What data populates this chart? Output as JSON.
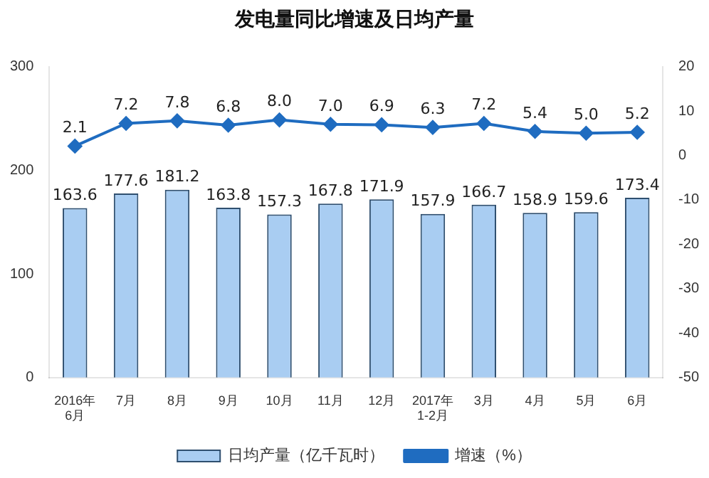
{
  "chart_data": {
    "type": "bar",
    "title": "发电量同比增速及日均产量",
    "categories": [
      "2016年\n6月",
      "7月",
      "8月",
      "9月",
      "10月",
      "11月",
      "12月",
      "2017年\n1-2月",
      "3月",
      "4月",
      "5月",
      "6月"
    ],
    "series": [
      {
        "name": "日均产量（亿千瓦时）",
        "color": "#a9cdf2",
        "values": [
          163.6,
          177.6,
          181.2,
          163.8,
          157.3,
          167.8,
          171.9,
          157.9,
          166.7,
          158.9,
          159.6,
          173.4
        ],
        "value_labels": [
          "163.6",
          "177.6",
          "181.2",
          "163.8",
          "157.3",
          "167.8",
          "171.9",
          "157.9",
          "166.7",
          "158.9",
          "159.6",
          "173.4"
        ]
      },
      {
        "name": "增速（%）",
        "type": "line",
        "axis": "y2",
        "color": "#1f6cc0",
        "values": [
          2.1,
          7.2,
          7.8,
          6.8,
          8.0,
          7.0,
          6.9,
          6.3,
          7.2,
          5.4,
          5.0,
          5.2
        ],
        "value_labels": [
          "2.1",
          "7.2",
          "7.8",
          "6.8",
          "8.0",
          "7.0",
          "6.9",
          "6.3",
          "7.2",
          "5.4",
          "5.0",
          "5.2"
        ]
      }
    ],
    "ylim": [
      0,
      300
    ],
    "yticks": [
      0,
      100,
      200,
      300
    ],
    "y2lim": [
      -50,
      20
    ],
    "y2ticks": [
      -50,
      -40,
      -30,
      -20,
      -10,
      0,
      10,
      20
    ],
    "legend": "bottom",
    "marker": "diamond",
    "grid": false
  }
}
